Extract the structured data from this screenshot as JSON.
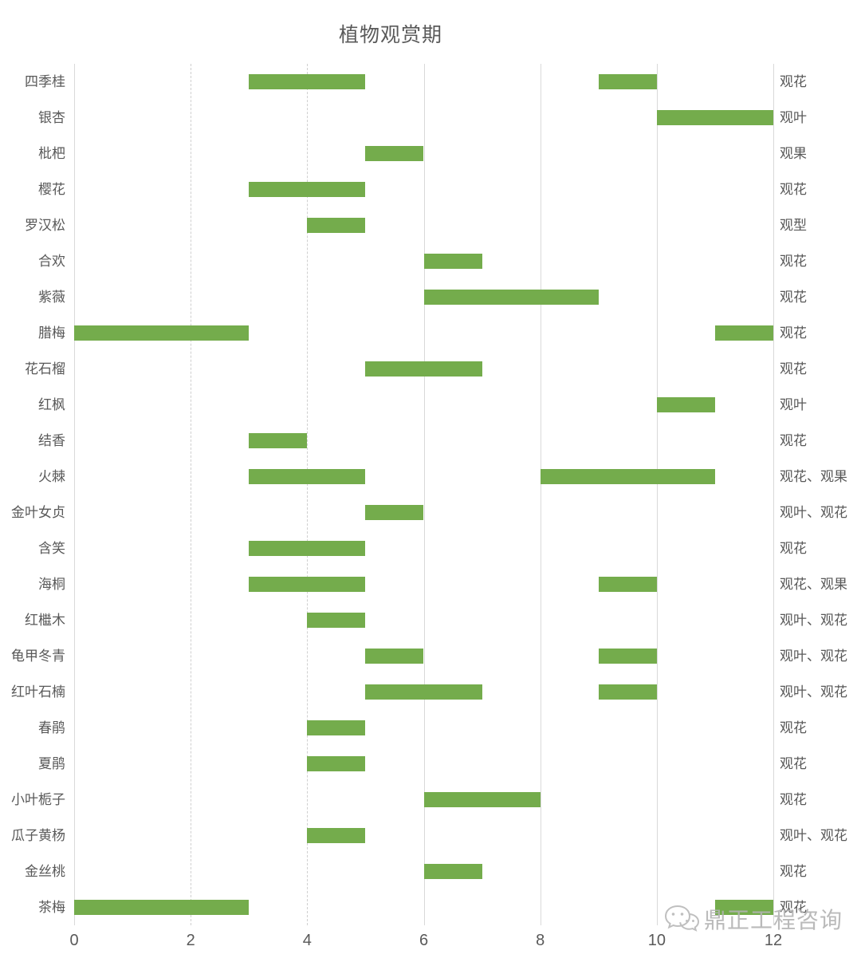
{
  "chart_data": {
    "type": "bar",
    "variant": "gantt",
    "title": "植物观赏期",
    "xlabel": "",
    "ylabel": "",
    "xlim": [
      0,
      12
    ],
    "x_ticks": [
      0,
      2,
      4,
      6,
      8,
      10,
      12
    ],
    "dashed_ticks": [
      2,
      4
    ],
    "grid": true,
    "legend": "none",
    "bar_color": "#74AC4C",
    "label_color": "#595959",
    "grid_color": "#d9d9d9",
    "rows": [
      {
        "name": "四季桂",
        "periods": [
          [
            3,
            5
          ],
          [
            9,
            10
          ]
        ],
        "category": "观花"
      },
      {
        "name": "银杏",
        "periods": [
          [
            10,
            12
          ]
        ],
        "category": "观叶"
      },
      {
        "name": "枇杷",
        "periods": [
          [
            5,
            6
          ]
        ],
        "category": "观果"
      },
      {
        "name": "樱花",
        "periods": [
          [
            3,
            5
          ]
        ],
        "category": "观花"
      },
      {
        "name": "罗汉松",
        "periods": [
          [
            4,
            5
          ]
        ],
        "category": "观型"
      },
      {
        "name": "合欢",
        "periods": [
          [
            6,
            7
          ]
        ],
        "category": "观花"
      },
      {
        "name": "紫薇",
        "periods": [
          [
            6,
            9
          ]
        ],
        "category": "观花"
      },
      {
        "name": "腊梅",
        "periods": [
          [
            0,
            3
          ],
          [
            11,
            12
          ]
        ],
        "category": "观花"
      },
      {
        "name": "花石榴",
        "periods": [
          [
            5,
            7
          ]
        ],
        "category": "观花"
      },
      {
        "name": "红枫",
        "periods": [
          [
            10,
            11
          ]
        ],
        "category": "观叶"
      },
      {
        "name": "结香",
        "periods": [
          [
            3,
            4
          ]
        ],
        "category": "观花"
      },
      {
        "name": "火棘",
        "periods": [
          [
            3,
            5
          ],
          [
            8,
            11
          ]
        ],
        "category": "观花、观果"
      },
      {
        "name": "金叶女贞",
        "periods": [
          [
            5,
            6
          ]
        ],
        "category": "观叶、观花"
      },
      {
        "name": "含笑",
        "periods": [
          [
            3,
            5
          ]
        ],
        "category": "观花"
      },
      {
        "name": "海桐",
        "periods": [
          [
            3,
            5
          ],
          [
            9,
            10
          ]
        ],
        "category": "观花、观果"
      },
      {
        "name": "红檵木",
        "periods": [
          [
            4,
            5
          ]
        ],
        "category": "观叶、观花"
      },
      {
        "name": "龟甲冬青",
        "periods": [
          [
            5,
            6
          ],
          [
            9,
            10
          ]
        ],
        "category": "观叶、观花"
      },
      {
        "name": "红叶石楠",
        "periods": [
          [
            5,
            7
          ],
          [
            9,
            10
          ]
        ],
        "category": "观叶、观花"
      },
      {
        "name": "春鹃",
        "periods": [
          [
            4,
            5
          ]
        ],
        "category": "观花"
      },
      {
        "name": "夏鹃",
        "periods": [
          [
            4,
            5
          ]
        ],
        "category": "观花"
      },
      {
        "name": "小叶栀子",
        "periods": [
          [
            6,
            8
          ]
        ],
        "category": "观花"
      },
      {
        "name": "瓜子黄杨",
        "periods": [
          [
            4,
            5
          ]
        ],
        "category": "观叶、观花"
      },
      {
        "name": "金丝桃",
        "periods": [
          [
            6,
            7
          ]
        ],
        "category": "观花"
      },
      {
        "name": "茶梅",
        "periods": [
          [
            0,
            3
          ],
          [
            11,
            12
          ]
        ],
        "category": "观花"
      }
    ]
  },
  "watermark": {
    "text": "鼎正工程咨询",
    "icon": "wechat-logo-icon",
    "color": "#b3b3b3"
  }
}
